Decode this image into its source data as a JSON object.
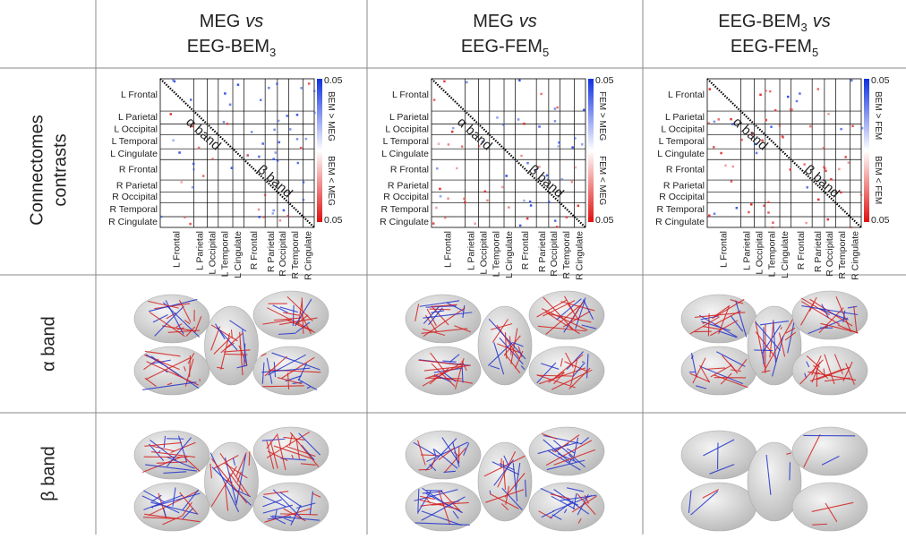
{
  "columns": [
    {
      "header": [
        [
          {
            "text": "MEG"
          },
          {
            "text": "vs",
            "style": "italic"
          }
        ],
        [
          {
            "text": "EEG-BEM"
          },
          {
            "text": "3",
            "style": "sub"
          }
        ]
      ],
      "colorbar": {
        "top": 0.05,
        "bottom": 0.05,
        "upper": "BEM > MEG",
        "lower": "BEM < MEG"
      }
    },
    {
      "header": [
        [
          {
            "text": "MEG"
          },
          {
            "text": "vs",
            "style": "italic"
          }
        ],
        [
          {
            "text": "EEG-FEM"
          },
          {
            "text": "5",
            "style": "sub"
          }
        ]
      ],
      "colorbar": {
        "top": 0.05,
        "bottom": 0.05,
        "upper": "FEM > MEG",
        "lower": "FEM < MEG"
      }
    },
    {
      "header": [
        [
          {
            "text": "EEG-BEM"
          },
          {
            "text": "3",
            "style": "sub"
          },
          {
            "text": "vs",
            "style": "italic"
          }
        ],
        [
          {
            "text": "EEG-FEM"
          },
          {
            "text": "5",
            "style": "sub"
          }
        ]
      ],
      "colorbar": {
        "top": 0.05,
        "bottom": 0.05,
        "upper": "BEM > FEM",
        "lower": "BEM < FEM"
      }
    }
  ],
  "rows": [
    {
      "label": [
        "Connectomes",
        "contrasts"
      ]
    },
    {
      "label": [
        "α band"
      ]
    },
    {
      "label": [
        "β band"
      ]
    }
  ],
  "matrix": {
    "regions": [
      "L Frontal",
      "L Parietal",
      "L Occipital",
      "L Temporal",
      "L Cingulate",
      "R Frontal",
      "R Parietal",
      "R Occipital",
      "R Temporal",
      "R Cingulate"
    ],
    "left_band": "α band",
    "right_band": "β band"
  }
}
